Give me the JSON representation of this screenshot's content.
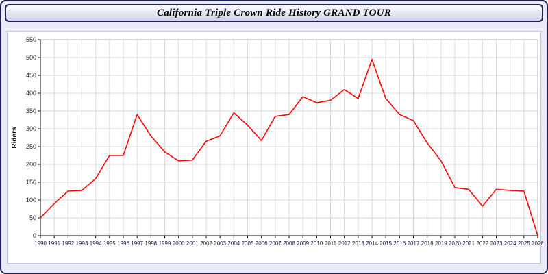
{
  "header": {
    "title": "California Triple Crown Ride History GRAND TOUR"
  },
  "chart_data": {
    "type": "line",
    "title": "California Triple Crown Ride History GRAND TOUR",
    "xlabel": "",
    "ylabel": "Riders",
    "ylim": [
      0,
      550
    ],
    "y_tick_step": 50,
    "grid": true,
    "legend": "none",
    "line_color": "#ff0000",
    "axis_color": "#000000",
    "grid_color": "#d9d9d9",
    "tick_label_color": "#1a1a3a",
    "categories": [
      "1990",
      "1991",
      "1992",
      "1993",
      "1994",
      "1995",
      "1996",
      "1997",
      "1998",
      "1999",
      "2000",
      "2001",
      "2002",
      "2003",
      "2004",
      "2005",
      "2006",
      "2007",
      "2008",
      "2009",
      "2010",
      "2011",
      "2012",
      "2013",
      "2014",
      "2015",
      "2016",
      "2017",
      "2018",
      "2019",
      "2020",
      "2021",
      "2022",
      "2023",
      "2024",
      "2025",
      "2026"
    ],
    "values": [
      50,
      90,
      125,
      127,
      160,
      225,
      225,
      340,
      280,
      235,
      210,
      212,
      265,
      280,
      345,
      310,
      267,
      335,
      340,
      390,
      373,
      380,
      410,
      385,
      495,
      385,
      340,
      323,
      260,
      210,
      135,
      130,
      83,
      130,
      127,
      125,
      0
    ]
  }
}
